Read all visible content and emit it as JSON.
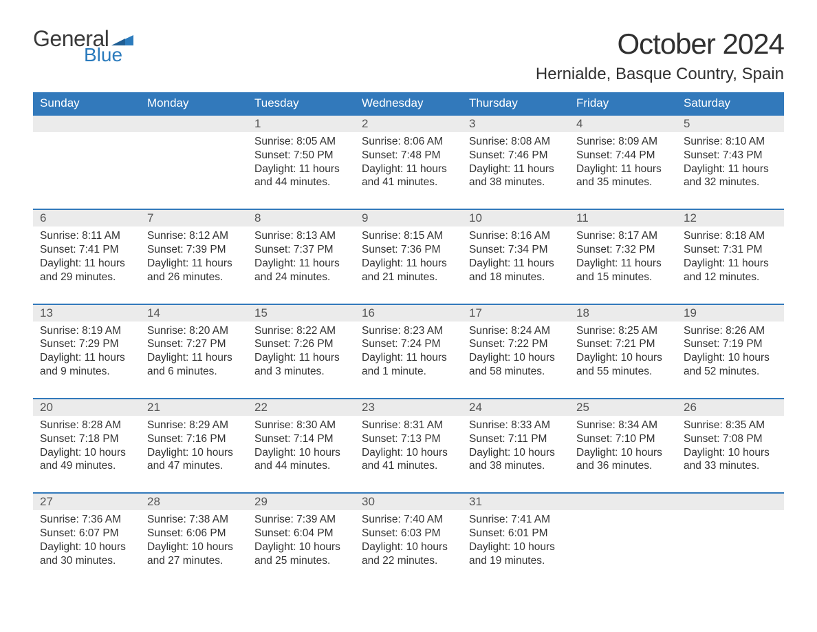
{
  "brand": {
    "general": "General",
    "blue": "Blue",
    "flag_color": "#2b7bbd",
    "text_dark": "#3a3a3a"
  },
  "title": "October 2024",
  "location": "Hernialde, Basque Country, Spain",
  "colors": {
    "header_bg": "#3279bb",
    "header_text": "#ffffff",
    "daynum_bg": "#ebebeb",
    "daynum_text": "#555555",
    "body_text": "#333333",
    "week_border": "#3279bb",
    "page_bg": "#ffffff"
  },
  "typography": {
    "title_fontsize": 42,
    "location_fontsize": 24,
    "weekday_fontsize": 17,
    "daynum_fontsize": 17,
    "cell_fontsize": 15.5
  },
  "weekdays": [
    "Sunday",
    "Monday",
    "Tuesday",
    "Wednesday",
    "Thursday",
    "Friday",
    "Saturday"
  ],
  "weeks": [
    [
      null,
      null,
      {
        "n": "1",
        "sunrise": "8:05 AM",
        "sunset": "7:50 PM",
        "daylight": "11 hours and 44 minutes."
      },
      {
        "n": "2",
        "sunrise": "8:06 AM",
        "sunset": "7:48 PM",
        "daylight": "11 hours and 41 minutes."
      },
      {
        "n": "3",
        "sunrise": "8:08 AM",
        "sunset": "7:46 PM",
        "daylight": "11 hours and 38 minutes."
      },
      {
        "n": "4",
        "sunrise": "8:09 AM",
        "sunset": "7:44 PM",
        "daylight": "11 hours and 35 minutes."
      },
      {
        "n": "5",
        "sunrise": "8:10 AM",
        "sunset": "7:43 PM",
        "daylight": "11 hours and 32 minutes."
      }
    ],
    [
      {
        "n": "6",
        "sunrise": "8:11 AM",
        "sunset": "7:41 PM",
        "daylight": "11 hours and 29 minutes."
      },
      {
        "n": "7",
        "sunrise": "8:12 AM",
        "sunset": "7:39 PM",
        "daylight": "11 hours and 26 minutes."
      },
      {
        "n": "8",
        "sunrise": "8:13 AM",
        "sunset": "7:37 PM",
        "daylight": "11 hours and 24 minutes."
      },
      {
        "n": "9",
        "sunrise": "8:15 AM",
        "sunset": "7:36 PM",
        "daylight": "11 hours and 21 minutes."
      },
      {
        "n": "10",
        "sunrise": "8:16 AM",
        "sunset": "7:34 PM",
        "daylight": "11 hours and 18 minutes."
      },
      {
        "n": "11",
        "sunrise": "8:17 AM",
        "sunset": "7:32 PM",
        "daylight": "11 hours and 15 minutes."
      },
      {
        "n": "12",
        "sunrise": "8:18 AM",
        "sunset": "7:31 PM",
        "daylight": "11 hours and 12 minutes."
      }
    ],
    [
      {
        "n": "13",
        "sunrise": "8:19 AM",
        "sunset": "7:29 PM",
        "daylight": "11 hours and 9 minutes."
      },
      {
        "n": "14",
        "sunrise": "8:20 AM",
        "sunset": "7:27 PM",
        "daylight": "11 hours and 6 minutes."
      },
      {
        "n": "15",
        "sunrise": "8:22 AM",
        "sunset": "7:26 PM",
        "daylight": "11 hours and 3 minutes."
      },
      {
        "n": "16",
        "sunrise": "8:23 AM",
        "sunset": "7:24 PM",
        "daylight": "11 hours and 1 minute."
      },
      {
        "n": "17",
        "sunrise": "8:24 AM",
        "sunset": "7:22 PM",
        "daylight": "10 hours and 58 minutes."
      },
      {
        "n": "18",
        "sunrise": "8:25 AM",
        "sunset": "7:21 PM",
        "daylight": "10 hours and 55 minutes."
      },
      {
        "n": "19",
        "sunrise": "8:26 AM",
        "sunset": "7:19 PM",
        "daylight": "10 hours and 52 minutes."
      }
    ],
    [
      {
        "n": "20",
        "sunrise": "8:28 AM",
        "sunset": "7:18 PM",
        "daylight": "10 hours and 49 minutes."
      },
      {
        "n": "21",
        "sunrise": "8:29 AM",
        "sunset": "7:16 PM",
        "daylight": "10 hours and 47 minutes."
      },
      {
        "n": "22",
        "sunrise": "8:30 AM",
        "sunset": "7:14 PM",
        "daylight": "10 hours and 44 minutes."
      },
      {
        "n": "23",
        "sunrise": "8:31 AM",
        "sunset": "7:13 PM",
        "daylight": "10 hours and 41 minutes."
      },
      {
        "n": "24",
        "sunrise": "8:33 AM",
        "sunset": "7:11 PM",
        "daylight": "10 hours and 38 minutes."
      },
      {
        "n": "25",
        "sunrise": "8:34 AM",
        "sunset": "7:10 PM",
        "daylight": "10 hours and 36 minutes."
      },
      {
        "n": "26",
        "sunrise": "8:35 AM",
        "sunset": "7:08 PM",
        "daylight": "10 hours and 33 minutes."
      }
    ],
    [
      {
        "n": "27",
        "sunrise": "7:36 AM",
        "sunset": "6:07 PM",
        "daylight": "10 hours and 30 minutes."
      },
      {
        "n": "28",
        "sunrise": "7:38 AM",
        "sunset": "6:06 PM",
        "daylight": "10 hours and 27 minutes."
      },
      {
        "n": "29",
        "sunrise": "7:39 AM",
        "sunset": "6:04 PM",
        "daylight": "10 hours and 25 minutes."
      },
      {
        "n": "30",
        "sunrise": "7:40 AM",
        "sunset": "6:03 PM",
        "daylight": "10 hours and 22 minutes."
      },
      {
        "n": "31",
        "sunrise": "7:41 AM",
        "sunset": "6:01 PM",
        "daylight": "10 hours and 19 minutes."
      },
      null,
      null
    ]
  ],
  "labels": {
    "sunrise": "Sunrise: ",
    "sunset": "Sunset: ",
    "daylight": "Daylight: "
  }
}
